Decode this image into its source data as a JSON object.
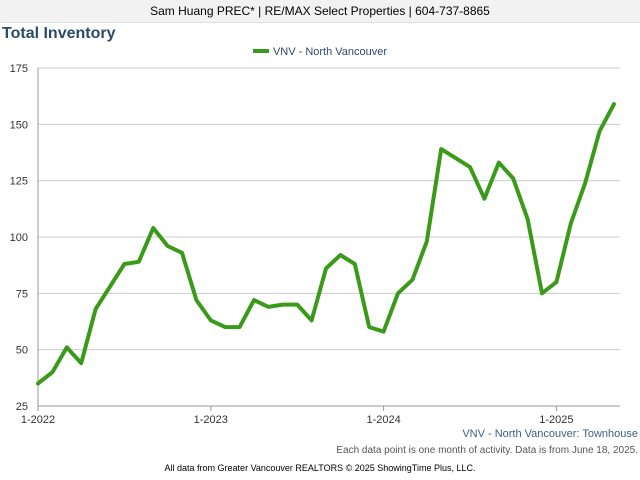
{
  "header": {
    "text": "Sam Huang PREC* | RE/MAX Select Properties | 604-737-8865"
  },
  "footer": {
    "series_label": "VNV - North Vancouver: Townhouse",
    "note": "Each data point is one month of activity. Data is from June 18, 2025.",
    "credit": "All data from Greater Vancouver REALTORS © 2025 ShowingTime Plus, LLC."
  },
  "colors": {
    "line": "#3a9a1a",
    "title": "#2c4a6b",
    "grid": "#cccccc"
  },
  "chart_data": {
    "type": "line",
    "title": "Total Inventory",
    "xlabel": "",
    "ylabel": "",
    "ylim": [
      25,
      175
    ],
    "yticks": [
      25,
      50,
      75,
      100,
      125,
      150,
      175
    ],
    "xticks": [
      "1-2022",
      "1-2023",
      "1-2024",
      "1-2025"
    ],
    "grid": true,
    "legend_position": "top-center",
    "x": [
      "2022-01",
      "2022-02",
      "2022-03",
      "2022-04",
      "2022-05",
      "2022-06",
      "2022-07",
      "2022-08",
      "2022-09",
      "2022-10",
      "2022-11",
      "2022-12",
      "2023-01",
      "2023-02",
      "2023-03",
      "2023-04",
      "2023-05",
      "2023-06",
      "2023-07",
      "2023-08",
      "2023-09",
      "2023-10",
      "2023-11",
      "2023-12",
      "2024-01",
      "2024-02",
      "2024-03",
      "2024-04",
      "2024-05",
      "2024-06",
      "2024-07",
      "2024-08",
      "2024-09",
      "2024-10",
      "2024-11",
      "2024-12",
      "2025-01",
      "2025-02",
      "2025-03",
      "2025-04",
      "2025-05"
    ],
    "series": [
      {
        "name": "VNV - North Vancouver",
        "values": [
          35,
          40,
          51,
          44,
          68,
          78,
          88,
          89,
          104,
          96,
          93,
          72,
          63,
          60,
          60,
          72,
          69,
          70,
          70,
          63,
          86,
          92,
          88,
          60,
          58,
          75,
          81,
          98,
          139,
          135,
          131,
          117,
          133,
          126,
          108,
          75,
          80,
          106,
          124,
          147,
          159
        ]
      }
    ]
  }
}
